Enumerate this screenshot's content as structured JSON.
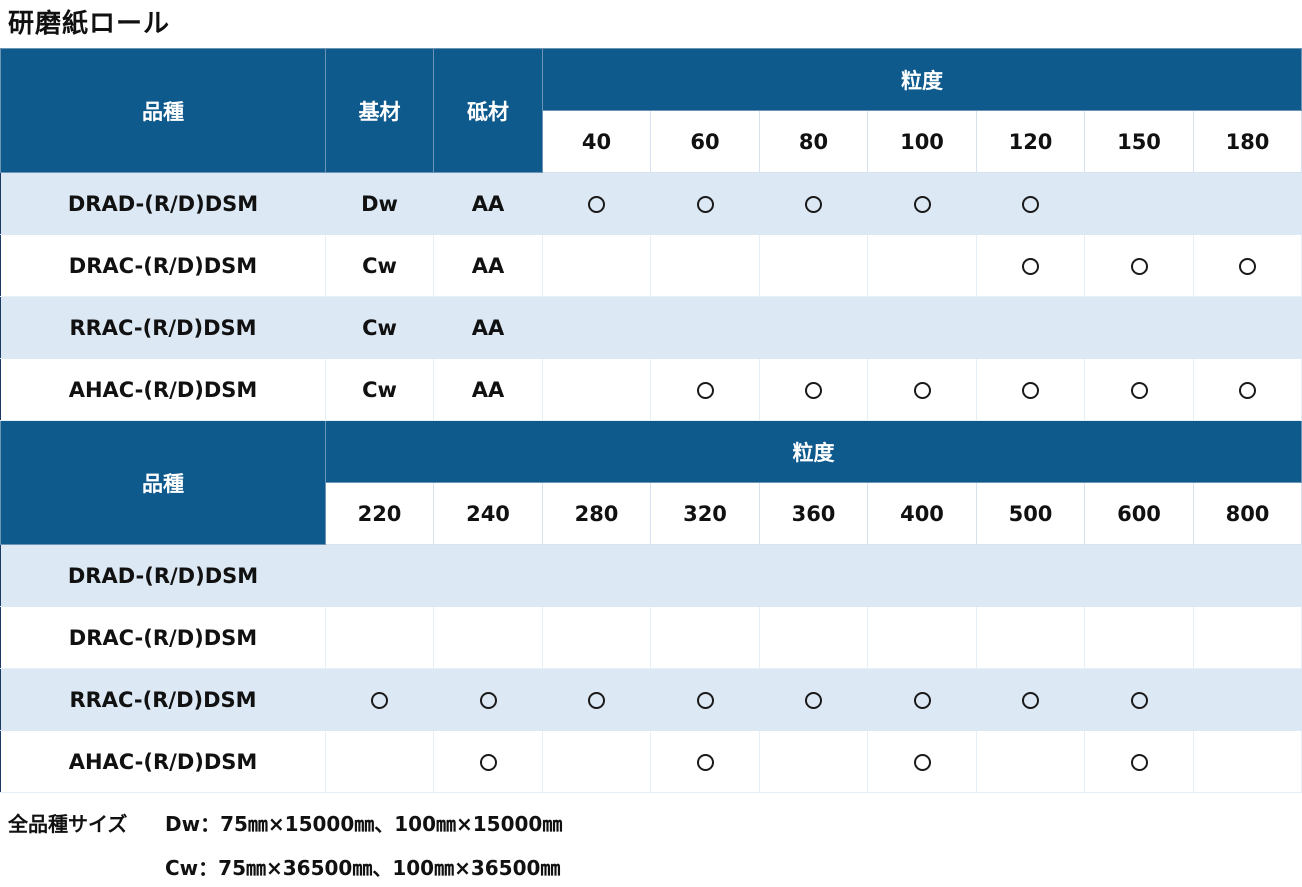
{
  "title": "研磨紙ロール",
  "table1": {
    "header": {
      "product": "品種",
      "base": "基材",
      "abrasive": "砥材",
      "grit": "粒度"
    },
    "grits": [
      "40",
      "60",
      "80",
      "100",
      "120",
      "150",
      "180"
    ],
    "rows": [
      {
        "product": "DRAD-(R/D)DSM",
        "base": "Dw",
        "abrasive": "AA",
        "marks": [
          true,
          true,
          true,
          true,
          true,
          false,
          false
        ]
      },
      {
        "product": "DRAC-(R/D)DSM",
        "base": "Cw",
        "abrasive": "AA",
        "marks": [
          false,
          false,
          false,
          false,
          true,
          true,
          true
        ]
      },
      {
        "product": "RRAC-(R/D)DSM",
        "base": "Cw",
        "abrasive": "AA",
        "marks": [
          false,
          false,
          false,
          false,
          false,
          false,
          false
        ]
      },
      {
        "product": "AHAC-(R/D)DSM",
        "base": "Cw",
        "abrasive": "AA",
        "marks": [
          false,
          true,
          true,
          true,
          true,
          true,
          true
        ]
      }
    ]
  },
  "table2": {
    "header": {
      "product": "品種",
      "grit": "粒度"
    },
    "grits": [
      "220",
      "240",
      "280",
      "320",
      "360",
      "400",
      "500",
      "600",
      "800"
    ],
    "rows": [
      {
        "product": "DRAD-(R/D)DSM",
        "marks": [
          false,
          false,
          false,
          false,
          false,
          false,
          false,
          false,
          false
        ]
      },
      {
        "product": "DRAC-(R/D)DSM",
        "marks": [
          false,
          false,
          false,
          false,
          false,
          false,
          false,
          false,
          false
        ]
      },
      {
        "product": "RRAC-(R/D)DSM",
        "marks": [
          true,
          true,
          true,
          true,
          true,
          true,
          true,
          true,
          false
        ]
      },
      {
        "product": "AHAC-(R/D)DSM",
        "marks": [
          false,
          true,
          false,
          true,
          false,
          true,
          false,
          true,
          false
        ]
      }
    ]
  },
  "notes": {
    "label": "全品種サイズ",
    "dw": "Dw：75㎜×15000㎜、100㎜×15000㎜",
    "cw": "Cw：75㎜×36500㎜、100㎜×36500㎜"
  }
}
